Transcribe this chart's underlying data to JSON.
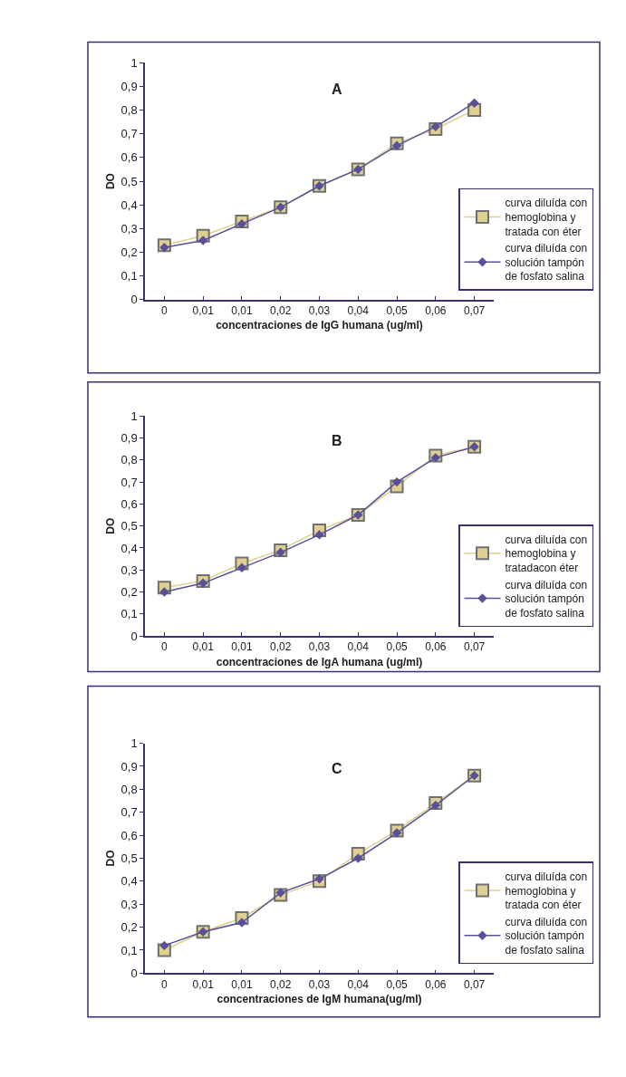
{
  "chart_data": [
    {
      "type": "line",
      "title": "A",
      "xlabel": "concentraciones de IgG humana (ug/ml)",
      "ylabel": "DO",
      "categories": [
        "0",
        "0,01",
        "0,01",
        "0,02",
        "0,03",
        "0,04",
        "0,05",
        "0,06",
        "0,07"
      ],
      "ylim": [
        0,
        1
      ],
      "yticks": [
        0,
        {
          "value": 0.1,
          "label": "0,1"
        },
        {
          "value": 0.2,
          "label": "0,2"
        },
        {
          "value": 0.3,
          "label": "0,3"
        },
        {
          "value": 0.4,
          "label": "0,4"
        },
        {
          "value": 0.5,
          "label": "0,5"
        },
        {
          "value": 0.6,
          "label": "0,6"
        },
        {
          "value": 0.7,
          "label": "0,7"
        },
        {
          "value": 0.8,
          "label": "0,8"
        },
        {
          "value": 0.9,
          "label": "0,9"
        },
        1
      ],
      "legend": "right",
      "series": [
        {
          "name": "curva diluída con hemoglobina y tratada con éter",
          "color": "#e0d090",
          "marker": "square",
          "values": [
            0.23,
            0.27,
            0.33,
            0.39,
            0.48,
            0.55,
            0.66,
            0.72,
            0.8
          ]
        },
        {
          "name": "curva diluída con solución tampón de fosfato salina",
          "color": "#5a5098",
          "marker": "diamond",
          "values": [
            0.22,
            0.25,
            0.32,
            0.39,
            0.48,
            0.55,
            0.65,
            0.73,
            0.83
          ]
        }
      ]
    },
    {
      "type": "line",
      "title": "B",
      "xlabel": "concentraciones de IgA humana (ug/ml)",
      "ylabel": "DO",
      "categories": [
        "0",
        "0,01",
        "0,01",
        "0,02",
        "0,03",
        "0,04",
        "0,05",
        "0,06",
        "0,07"
      ],
      "ylim": [
        0,
        1
      ],
      "yticks": [
        0,
        {
          "value": 0.1,
          "label": "0,1"
        },
        {
          "value": 0.2,
          "label": "0,2"
        },
        {
          "value": 0.3,
          "label": "0,3"
        },
        {
          "value": 0.4,
          "label": "0,4"
        },
        {
          "value": 0.5,
          "label": "0,5"
        },
        {
          "value": 0.6,
          "label": "0,6"
        },
        {
          "value": 0.7,
          "label": "0,7"
        },
        {
          "value": 0.8,
          "label": "0,8"
        },
        {
          "value": 0.9,
          "label": "0,9"
        },
        1
      ],
      "legend": "right",
      "series": [
        {
          "name": "curva diluída con hemoglobina y tratadacon éter",
          "color": "#e0d090",
          "marker": "square",
          "values": [
            0.22,
            0.25,
            0.33,
            0.39,
            0.48,
            0.55,
            0.68,
            0.82,
            0.86
          ]
        },
        {
          "name": "curva diluída con solución tampón de fosfato salina",
          "color": "#5a5098",
          "marker": "diamond",
          "values": [
            0.2,
            0.24,
            0.31,
            0.38,
            0.46,
            0.55,
            0.7,
            0.81,
            0.86
          ]
        }
      ]
    },
    {
      "type": "line",
      "title": "C",
      "xlabel": "concentraciones de IgM humana(ug/ml)",
      "ylabel": "DO",
      "categories": [
        "0",
        "0,01",
        "0,01",
        "0,02",
        "0,03",
        "0,04",
        "0,05",
        "0,06",
        "0,07"
      ],
      "ylim": [
        0,
        1
      ],
      "yticks": [
        0,
        {
          "value": 0.1,
          "label": "0,1"
        },
        {
          "value": 0.2,
          "label": "0,2"
        },
        {
          "value": 0.3,
          "label": "0,3"
        },
        {
          "value": 0.4,
          "label": "0,4"
        },
        {
          "value": 0.5,
          "label": "0,5"
        },
        {
          "value": 0.6,
          "label": "0,6"
        },
        {
          "value": 0.7,
          "label": "0,7"
        },
        {
          "value": 0.8,
          "label": "0,8"
        },
        {
          "value": 0.9,
          "label": "0,9"
        },
        1
      ],
      "legend": "right",
      "series": [
        {
          "name": "curva diluída con hemoglobina y tratada con éter",
          "color": "#e0d090",
          "marker": "square",
          "values": [
            0.1,
            0.18,
            0.24,
            0.34,
            0.4,
            0.52,
            0.62,
            0.74,
            0.86
          ]
        },
        {
          "name": "curva diluída con solución tampón de fosfato salina",
          "color": "#5a5098",
          "marker": "diamond",
          "values": [
            0.12,
            0.18,
            0.22,
            0.35,
            0.41,
            0.5,
            0.61,
            0.73,
            0.86
          ]
        }
      ]
    }
  ]
}
